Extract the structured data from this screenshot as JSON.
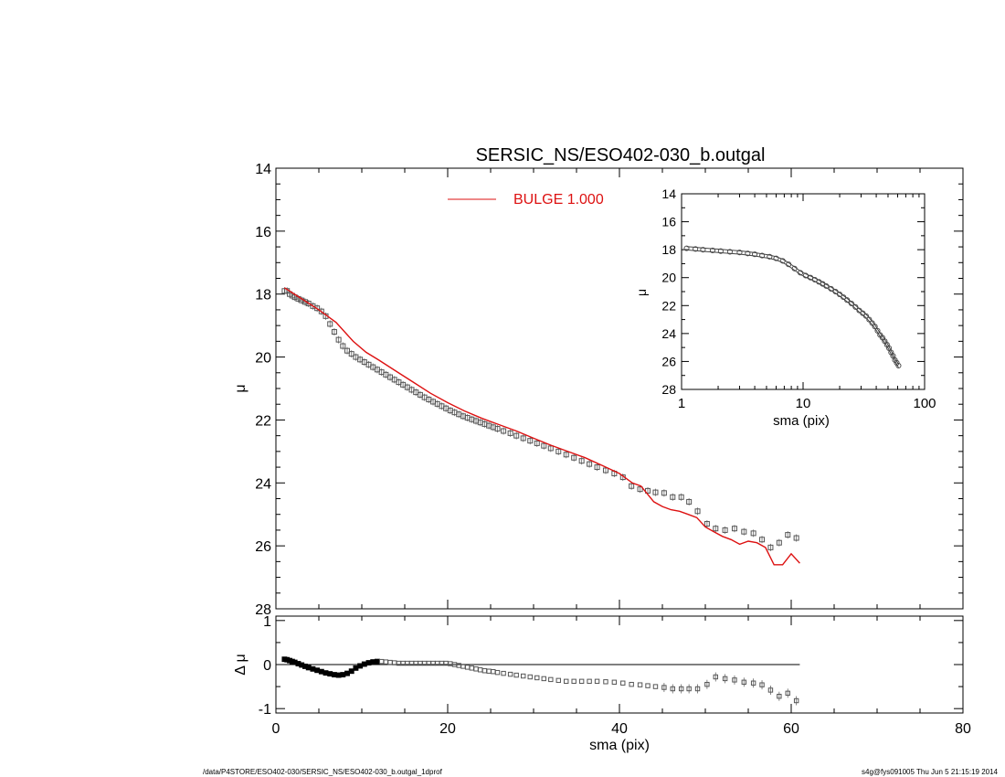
{
  "chart_data": [
    {
      "id": "main",
      "type": "scatter",
      "title": "SERSIC_NS/ESO402-030_b.outgal",
      "ylabel": "μ",
      "xlim": [
        0,
        80
      ],
      "ylim": [
        28,
        14
      ],
      "y_inverted": true,
      "yticks": [
        "14",
        "16",
        "18",
        "20",
        "22",
        "24",
        "26",
        "28"
      ],
      "legend": {
        "label": "BULGE  1.000",
        "color": "#dd1111",
        "placement": "top-center"
      },
      "series": [
        {
          "name": "data",
          "marker": "square",
          "color": "#555555",
          "x": [
            1.0,
            1.3,
            1.6,
            1.9,
            2.2,
            2.6,
            3.0,
            3.4,
            3.8,
            4.3,
            4.8,
            5.3,
            5.8,
            6.3,
            6.8,
            7.3,
            7.8,
            8.3,
            8.8,
            9.3,
            9.8,
            10.3,
            10.8,
            11.3,
            11.8,
            12.3,
            12.8,
            13.3,
            13.8,
            14.3,
            14.8,
            15.3,
            15.8,
            16.3,
            16.8,
            17.3,
            17.8,
            18.3,
            18.8,
            19.3,
            19.8,
            20.3,
            20.8,
            21.3,
            21.8,
            22.3,
            22.8,
            23.3,
            23.8,
            24.3,
            24.8,
            25.3,
            25.8,
            26.5,
            27.3,
            28.0,
            28.8,
            29.6,
            30.4,
            31.2,
            32.0,
            32.9,
            33.8,
            34.7,
            35.6,
            36.5,
            37.4,
            38.4,
            39.4,
            40.4,
            41.4,
            42.4,
            43.3,
            44.2,
            45.2,
            46.2,
            47.2,
            48.1,
            49.1,
            50.2,
            51.2,
            52.3,
            53.4,
            54.5,
            55.6,
            56.6,
            57.6,
            58.6,
            59.6,
            60.6
          ],
          "y": [
            17.9,
            17.9,
            18.0,
            18.05,
            18.1,
            18.15,
            18.2,
            18.25,
            18.3,
            18.38,
            18.45,
            18.55,
            18.7,
            18.95,
            19.2,
            19.45,
            19.65,
            19.8,
            19.9,
            20.0,
            20.08,
            20.16,
            20.24,
            20.32,
            20.4,
            20.48,
            20.56,
            20.64,
            20.72,
            20.8,
            20.88,
            20.96,
            21.04,
            21.12,
            21.2,
            21.28,
            21.35,
            21.42,
            21.49,
            21.56,
            21.63,
            21.7,
            21.76,
            21.82,
            21.88,
            21.93,
            21.98,
            22.03,
            22.08,
            22.13,
            22.18,
            22.23,
            22.28,
            22.35,
            22.42,
            22.5,
            22.58,
            22.66,
            22.74,
            22.82,
            22.9,
            23.0,
            23.1,
            23.2,
            23.3,
            23.4,
            23.5,
            23.6,
            23.7,
            23.82,
            24.1,
            24.2,
            24.25,
            24.3,
            24.32,
            24.45,
            24.45,
            24.6,
            24.9,
            25.3,
            25.45,
            25.5,
            25.45,
            25.55,
            25.6,
            25.8,
            26.05,
            25.9,
            25.65,
            25.75
          ]
        },
        {
          "name": "BULGE  1.000",
          "line": true,
          "color": "#dd1111",
          "x": [
            1.0,
            3.0,
            5.0,
            7.0,
            9.0,
            10.5,
            12.0,
            14.0,
            16.0,
            18.0,
            20.0,
            22.0,
            24.0,
            26.0,
            28.0,
            30.0,
            32.0,
            34.0,
            36.0,
            38.0,
            40.0,
            41.5,
            42.5,
            44.0,
            45.0,
            46.0,
            47.0,
            48.0,
            49.0,
            50.0,
            51.0,
            52.0,
            53.0,
            54.0,
            55.0,
            56.0,
            57.0,
            58.0,
            59.0,
            60.0,
            61.0
          ],
          "y": [
            17.8,
            18.15,
            18.5,
            18.9,
            19.5,
            19.85,
            20.1,
            20.45,
            20.8,
            21.15,
            21.45,
            21.72,
            21.95,
            22.15,
            22.35,
            22.58,
            22.8,
            23.0,
            23.2,
            23.45,
            23.7,
            24.0,
            24.1,
            24.6,
            24.75,
            24.85,
            24.9,
            25.0,
            25.1,
            25.4,
            25.55,
            25.7,
            25.8,
            25.95,
            25.85,
            25.9,
            26.05,
            26.6,
            26.6,
            26.25,
            26.55
          ]
        }
      ]
    },
    {
      "id": "residual",
      "type": "scatter",
      "xlabel": "sma (pix)",
      "ylabel": "Δ μ",
      "xlim": [
        0,
        80
      ],
      "ylim": [
        -1.1,
        1.1
      ],
      "xticks": [
        "0",
        "20",
        "40",
        "60",
        "80"
      ],
      "yticks": [
        "1",
        "0",
        "-1"
      ],
      "zero_line": {
        "x_end": 61
      },
      "series": [
        {
          "name": "residual",
          "marker": "square",
          "color": "#555555",
          "x": [
            1.0,
            1.3,
            1.6,
            1.9,
            2.2,
            2.6,
            3.0,
            3.4,
            3.8,
            4.3,
            4.8,
            5.3,
            5.8,
            6.3,
            6.8,
            7.3,
            7.8,
            8.3,
            8.8,
            9.3,
            9.8,
            10.3,
            10.8,
            11.3,
            11.8,
            12.3,
            12.8,
            13.3,
            13.8,
            14.3,
            14.8,
            15.3,
            15.8,
            16.3,
            16.8,
            17.3,
            17.8,
            18.3,
            18.8,
            19.3,
            19.8,
            20.3,
            20.8,
            21.3,
            21.8,
            22.3,
            22.8,
            23.3,
            23.8,
            24.3,
            24.8,
            25.3,
            25.8,
            26.5,
            27.3,
            28.0,
            28.8,
            29.6,
            30.4,
            31.2,
            32.0,
            32.9,
            33.8,
            34.7,
            35.6,
            36.5,
            37.4,
            38.4,
            39.4,
            40.4,
            41.4,
            42.4,
            43.3,
            44.2,
            45.2,
            46.2,
            47.2,
            48.1,
            49.1,
            50.2,
            51.2,
            52.3,
            53.4,
            54.5,
            55.6,
            56.6,
            57.6,
            58.6,
            59.6,
            60.6
          ],
          "y": [
            0.12,
            0.11,
            0.09,
            0.07,
            0.05,
            0.02,
            -0.01,
            -0.04,
            -0.07,
            -0.1,
            -0.13,
            -0.16,
            -0.19,
            -0.21,
            -0.23,
            -0.24,
            -0.23,
            -0.2,
            -0.15,
            -0.08,
            -0.03,
            0.01,
            0.04,
            0.06,
            0.07,
            0.07,
            0.06,
            0.05,
            0.04,
            0.03,
            0.03,
            0.03,
            0.03,
            0.03,
            0.03,
            0.03,
            0.03,
            0.03,
            0.03,
            0.03,
            0.03,
            0.02,
            0.0,
            -0.02,
            -0.04,
            -0.06,
            -0.08,
            -0.1,
            -0.12,
            -0.14,
            -0.15,
            -0.16,
            -0.18,
            -0.2,
            -0.22,
            -0.24,
            -0.26,
            -0.28,
            -0.3,
            -0.32,
            -0.34,
            -0.36,
            -0.38,
            -0.38,
            -0.38,
            -0.38,
            -0.38,
            -0.39,
            -0.4,
            -0.42,
            -0.45,
            -0.46,
            -0.48,
            -0.5,
            -0.52,
            -0.55,
            -0.55,
            -0.55,
            -0.55,
            -0.45,
            -0.28,
            -0.32,
            -0.35,
            -0.4,
            -0.42,
            -0.46,
            -0.58,
            -0.72,
            -0.65,
            -0.82
          ]
        }
      ]
    },
    {
      "id": "inset",
      "type": "scatter",
      "xlabel": "sma (pix)",
      "ylabel": "μ",
      "xscale": "log",
      "xlim": [
        1,
        100
      ],
      "ylim": [
        28,
        14
      ],
      "y_inverted": true,
      "xticks": [
        "1",
        "10",
        "100"
      ],
      "yticks": [
        "14",
        "16",
        "18",
        "20",
        "22",
        "24",
        "26",
        "28"
      ],
      "series": [
        {
          "name": "profile",
          "marker": "circle",
          "color": "#444444",
          "x": [
            1.1,
            1.3,
            1.5,
            1.8,
            2.1,
            2.5,
            3.0,
            3.5,
            4.0,
            4.6,
            5.3,
            6.0,
            6.8,
            7.6,
            8.5,
            9.5,
            10.5,
            11.5,
            12.5,
            13.5,
            14.5,
            15.5,
            17.0,
            18.5,
            20.0,
            21.5,
            23.0,
            25.0,
            27.0,
            29.0,
            31.0,
            33.0,
            35.0,
            37.0,
            39.0,
            41.0,
            43.0,
            45.0,
            47.0,
            49.0,
            51.0,
            53.0,
            55.0,
            57.0,
            59.0,
            61.0
          ],
          "y": [
            17.9,
            17.95,
            18.0,
            18.05,
            18.1,
            18.15,
            18.2,
            18.27,
            18.33,
            18.42,
            18.5,
            18.62,
            18.8,
            19.05,
            19.35,
            19.65,
            19.85,
            20.0,
            20.15,
            20.3,
            20.45,
            20.6,
            20.8,
            21.0,
            21.2,
            21.4,
            21.6,
            21.85,
            22.1,
            22.35,
            22.55,
            22.75,
            23.0,
            23.25,
            23.5,
            23.8,
            24.1,
            24.3,
            24.55,
            24.8,
            25.05,
            25.35,
            25.6,
            25.9,
            26.1,
            26.3
          ]
        }
      ]
    }
  ],
  "footer": {
    "path": "/data/P4STORE/ESO402-030/SERSIC_NS/ESO402-030_b.outgal_1dprof",
    "stamp": "s4g@fys091005  Thu Jun  5 21:15:19 2014"
  }
}
